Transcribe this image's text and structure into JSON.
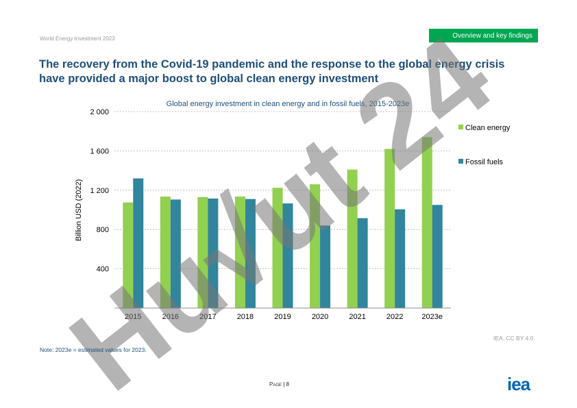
{
  "header": {
    "report_name": "World Energy Investment 2023",
    "section": "Overview and key findings"
  },
  "title": "The recovery from the Covid-19 pandemic and the response to the global energy crisis have provided a major boost to global clean energy investment",
  "footer": {
    "note": "Note:  2023e = estimated values for 2023.",
    "credit": "IEA. CC BY 4.0.",
    "page_word": "Page",
    "page_number": "| 8",
    "logo": "iea"
  },
  "watermark": {
    "text": "Hu√ut 24",
    "color": "#c8b8f0"
  },
  "colors": {
    "clean": "#92d050",
    "fossil": "#31859c",
    "title": "#1f4e79",
    "badge": "#00a651"
  },
  "chart_data": {
    "type": "bar",
    "title": "Global energy investment in clean energy and in fossil fuels, 2015-2023e",
    "ylabel": "Billion USD (2022)",
    "xlabel": "",
    "ylim": [
      0,
      2000
    ],
    "yticks": [
      400,
      800,
      1200,
      1600,
      2000
    ],
    "ytick_labels": [
      "400",
      "800",
      "1 200",
      "1 600",
      "2 000"
    ],
    "grid": true,
    "legend_position": "right",
    "categories": [
      "2015",
      "2016",
      "2017",
      "2018",
      "2019",
      "2020",
      "2021",
      "2022",
      "2023e"
    ],
    "series": [
      {
        "name": "Clean energy",
        "color": "#92d050",
        "values": [
          1075,
          1135,
          1130,
          1135,
          1225,
          1260,
          1410,
          1620,
          1740
        ]
      },
      {
        "name": "Fossil fuels",
        "color": "#31859c",
        "values": [
          1320,
          1105,
          1115,
          1110,
          1065,
          840,
          915,
          1005,
          1050
        ]
      }
    ]
  }
}
